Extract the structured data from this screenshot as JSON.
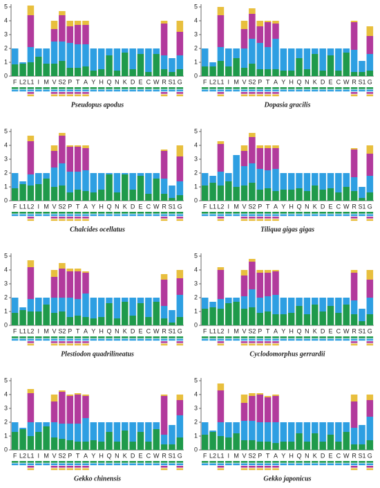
{
  "chart_data": [
    {
      "type": "bar",
      "stacked": true,
      "title": "Pseudopus apodus",
      "categories": [
        "F",
        "L2",
        "L1",
        "I",
        "M",
        "V",
        "S2",
        "P",
        "T",
        "A",
        "Y",
        "H",
        "Q",
        "N",
        "K",
        "D",
        "E",
        "C",
        "W",
        "R",
        "S1",
        "G"
      ],
      "ylim": [
        0,
        5
      ],
      "yticks": [
        0,
        1,
        2,
        3,
        4,
        5
      ],
      "series": [
        {
          "color": "#1f9a4b",
          "values": [
            0.85,
            0.9,
            1.0,
            1.4,
            0.9,
            0.9,
            1.1,
            0.6,
            0.6,
            0.7,
            0.4,
            0.5,
            1.5,
            0.4,
            1.7,
            0.5,
            1.6,
            0.3,
            1.6,
            0.5,
            0.3,
            0.5
          ]
        },
        {
          "color": "#2e9fe2",
          "values": [
            1.15,
            0.1,
            1.1,
            0.6,
            1.1,
            1.6,
            1.4,
            1.8,
            1.7,
            1.6,
            1.6,
            1.5,
            0.5,
            1.6,
            0.3,
            1.5,
            0.4,
            1.7,
            0.4,
            1.0,
            1.0,
            1.0
          ]
        },
        {
          "color": "#b23a9c",
          "values": [
            null,
            null,
            2.3,
            null,
            null,
            0.9,
            1.9,
            1.2,
            1.4,
            1.4,
            null,
            null,
            null,
            null,
            null,
            null,
            null,
            null,
            null,
            2.3,
            null,
            1.7
          ]
        },
        {
          "color": "#e8bf3e",
          "values": [
            null,
            null,
            0.7,
            null,
            null,
            0.6,
            0.3,
            0.4,
            0.3,
            0.3,
            null,
            null,
            null,
            null,
            null,
            null,
            null,
            null,
            null,
            0.2,
            null,
            0.8
          ]
        }
      ]
    },
    {
      "type": "bar",
      "stacked": true,
      "title": "Dopasia gracilis",
      "categories": [
        "F",
        "L2",
        "L1",
        "I",
        "M",
        "V",
        "S2",
        "P",
        "T",
        "A",
        "Y",
        "H",
        "Q",
        "N",
        "K",
        "D",
        "E",
        "C",
        "W",
        "R",
        "S1",
        "G"
      ],
      "ylim": [
        0,
        5
      ],
      "yticks": [
        0,
        1,
        2,
        3,
        4,
        5
      ],
      "series": [
        {
          "color": "#1f9a4b",
          "values": [
            0.7,
            0.7,
            1.1,
            0.7,
            1.3,
            0.6,
            0.9,
            0.5,
            0.5,
            0.5,
            0.4,
            0.4,
            1.3,
            0.5,
            1.6,
            0.4,
            1.5,
            0.4,
            1.7,
            0.3,
            0.3,
            0.4
          ]
        },
        {
          "color": "#2e9fe2",
          "values": [
            1.3,
            0.3,
            1.0,
            1.3,
            0.7,
            1.4,
            1.8,
            1.9,
            1.6,
            2.2,
            1.6,
            1.6,
            0.7,
            1.5,
            0.4,
            1.6,
            0.5,
            1.6,
            0.3,
            1.6,
            0.8,
            1.2
          ]
        },
        {
          "color": "#b23a9c",
          "values": [
            null,
            null,
            2.3,
            null,
            null,
            1.4,
            1.8,
            1.2,
            1.8,
            1.1,
            null,
            null,
            null,
            null,
            null,
            null,
            null,
            null,
            null,
            2.0,
            null,
            1.3
          ]
        },
        {
          "color": "#e8bf3e",
          "values": [
            null,
            null,
            0.6,
            null,
            null,
            0.6,
            0.4,
            0.4,
            0.1,
            0.2,
            null,
            null,
            null,
            null,
            null,
            null,
            null,
            null,
            null,
            0.1,
            null,
            0.7
          ]
        }
      ]
    },
    {
      "type": "bar",
      "stacked": true,
      "title": "Chalcides ocellatus",
      "categories": [
        "F",
        "L1",
        "L2",
        "I",
        "M",
        "V",
        "S2",
        "P",
        "T",
        "A",
        "Y",
        "H",
        "Q",
        "N",
        "K",
        "D",
        "E",
        "C",
        "W",
        "R",
        "S1",
        "G"
      ],
      "ylim": [
        0,
        5
      ],
      "yticks": [
        0,
        1,
        2,
        3,
        4,
        5
      ],
      "series": [
        {
          "color": "#1f9a4b",
          "values": [
            0.9,
            1.2,
            1.1,
            1.2,
            1.6,
            1.0,
            1.1,
            0.6,
            0.8,
            0.7,
            0.6,
            0.8,
            1.9,
            0.6,
            1.9,
            0.8,
            1.8,
            0.5,
            1.6,
            0.5,
            0.2,
            0.4
          ]
        },
        {
          "color": "#2e9fe2",
          "values": [
            1.1,
            0.2,
            0.8,
            0.8,
            0.4,
            1.4,
            1.6,
            1.5,
            1.3,
            1.5,
            1.4,
            1.2,
            0.1,
            1.4,
            0.1,
            1.2,
            0.2,
            1.5,
            0.4,
            1.1,
            0.9,
            1.0
          ]
        },
        {
          "color": "#b23a9c",
          "values": [
            null,
            null,
            2.4,
            null,
            null,
            1.2,
            2.0,
            1.8,
            1.8,
            1.6,
            null,
            null,
            null,
            null,
            null,
            null,
            null,
            null,
            null,
            2.0,
            null,
            1.8
          ]
        },
        {
          "color": "#e8bf3e",
          "values": [
            null,
            null,
            0.4,
            null,
            null,
            0.4,
            0.2,
            0.1,
            0.1,
            0.2,
            null,
            null,
            null,
            null,
            null,
            null,
            null,
            null,
            null,
            0.1,
            null,
            0.8
          ]
        }
      ]
    },
    {
      "type": "bar",
      "stacked": true,
      "title": "Tiliqua gigas gigas",
      "categories": [
        "F",
        "L1",
        "L2",
        "I",
        "M",
        "V",
        "S2",
        "P",
        "T",
        "A",
        "Y",
        "H",
        "Q",
        "N",
        "K",
        "D",
        "E",
        "C",
        "W",
        "R",
        "S1",
        "G"
      ],
      "ylim": [
        0,
        5
      ],
      "yticks": [
        0,
        1,
        2,
        3,
        4,
        5
      ],
      "series": [
        {
          "color": "#1f9a4b",
          "values": [
            1.1,
            1.3,
            1.1,
            1.4,
            1.0,
            1.1,
            1.3,
            0.8,
            0.9,
            0.7,
            0.8,
            0.8,
            0.9,
            0.7,
            1.1,
            0.8,
            0.9,
            0.6,
            1.0,
            0.7,
            0.2,
            0.6
          ]
        },
        {
          "color": "#2e9fe2",
          "values": [
            0.9,
            0.5,
            1.0,
            0.6,
            2.3,
            1.4,
            1.4,
            1.5,
            1.3,
            1.6,
            1.2,
            1.2,
            1.1,
            1.3,
            0.9,
            1.2,
            1.1,
            1.4,
            1.0,
            1.0,
            0.8,
            1.2
          ]
        },
        {
          "color": "#b23a9c",
          "values": [
            null,
            null,
            2.0,
            null,
            null,
            1.1,
            1.9,
            1.5,
            1.6,
            1.5,
            null,
            null,
            null,
            null,
            null,
            null,
            null,
            null,
            null,
            2.0,
            null,
            1.6
          ]
        },
        {
          "color": "#e8bf3e",
          "values": [
            null,
            null,
            0.2,
            null,
            null,
            0.4,
            0.3,
            0.2,
            0.2,
            0.2,
            null,
            null,
            null,
            null,
            null,
            null,
            null,
            null,
            null,
            0.1,
            null,
            0.6
          ]
        }
      ]
    },
    {
      "type": "bar",
      "stacked": true,
      "title": "Plestiodon quadrilineatus",
      "categories": [
        "F",
        "L1",
        "L2",
        "I",
        "M",
        "V",
        "S2",
        "P",
        "T",
        "A",
        "Y",
        "H",
        "Q",
        "N",
        "K",
        "D",
        "E",
        "C",
        "W",
        "R",
        "S1",
        "G"
      ],
      "ylim": [
        0,
        5
      ],
      "yticks": [
        0,
        1,
        2,
        3,
        4,
        5
      ],
      "series": [
        {
          "color": "#1f9a4b",
          "values": [
            0.9,
            1.1,
            1.0,
            1.0,
            1.5,
            0.9,
            1.0,
            0.6,
            0.7,
            0.6,
            0.5,
            0.6,
            1.6,
            0.5,
            1.7,
            0.7,
            1.6,
            0.6,
            1.7,
            0.5,
            0.2,
            0.6
          ]
        },
        {
          "color": "#2e9fe2",
          "values": [
            1.1,
            0.2,
            0.9,
            1.0,
            0.5,
            1.1,
            1.0,
            1.4,
            1.2,
            1.7,
            1.5,
            1.4,
            0.4,
            1.5,
            0.3,
            1.3,
            0.4,
            1.4,
            0.3,
            0.9,
            0.9,
            1.6
          ]
        },
        {
          "color": "#b23a9c",
          "values": [
            null,
            null,
            2.3,
            null,
            null,
            1.5,
            2.1,
            1.9,
            2.0,
            1.5,
            null,
            null,
            null,
            null,
            null,
            null,
            null,
            null,
            null,
            1.9,
            null,
            1.2
          ]
        },
        {
          "color": "#e8bf3e",
          "values": [
            null,
            null,
            0.5,
            null,
            null,
            0.5,
            0.4,
            0.2,
            0.2,
            0.1,
            null,
            null,
            null,
            null,
            null,
            null,
            null,
            null,
            null,
            0.4,
            null,
            0.6
          ]
        }
      ]
    },
    {
      "type": "bar",
      "stacked": true,
      "title": "Cyclodomorphus gerrardii",
      "categories": [
        "F",
        "L1",
        "L2",
        "I",
        "M",
        "V",
        "S2",
        "P",
        "T",
        "A",
        "Y",
        "H",
        "Q",
        "N",
        "K",
        "D",
        "E",
        "C",
        "W",
        "R",
        "S1",
        "G"
      ],
      "ylim": [
        0,
        5
      ],
      "yticks": [
        0,
        1,
        2,
        3,
        4,
        5
      ],
      "series": [
        {
          "color": "#1f9a4b",
          "values": [
            1.2,
            1.3,
            1.2,
            1.6,
            1.7,
            1.2,
            1.3,
            0.9,
            1.0,
            0.8,
            0.8,
            0.9,
            1.4,
            0.8,
            1.5,
            1.0,
            1.4,
            0.9,
            1.5,
            0.8,
            0.3,
            0.8
          ]
        },
        {
          "color": "#2e9fe2",
          "values": [
            0.8,
            0.4,
            0.7,
            0.4,
            0.3,
            0.9,
            1.3,
            1.1,
            1.1,
            1.4,
            1.2,
            1.1,
            0.6,
            1.2,
            0.5,
            1.0,
            0.6,
            1.1,
            0.5,
            1.0,
            0.9,
            1.2
          ]
        },
        {
          "color": "#b23a9c",
          "values": [
            null,
            null,
            2.1,
            null,
            null,
            1.5,
            2.0,
            1.8,
            1.7,
            1.7,
            null,
            null,
            null,
            null,
            null,
            null,
            null,
            null,
            null,
            2.0,
            null,
            1.3
          ]
        },
        {
          "color": "#e8bf3e",
          "values": [
            null,
            null,
            0.2,
            null,
            null,
            0.4,
            0.2,
            0.2,
            0.2,
            0.1,
            null,
            null,
            null,
            null,
            null,
            null,
            null,
            null,
            null,
            0.2,
            null,
            0.7
          ]
        }
      ]
    },
    {
      "type": "bar",
      "stacked": true,
      "title": "Gekko  chinensis",
      "categories": [
        "F",
        "L2",
        "L1",
        "I",
        "M",
        "V",
        "S2",
        "P",
        "T",
        "A",
        "Y",
        "H",
        "Q",
        "N",
        "K",
        "D",
        "E",
        "C",
        "W",
        "R",
        "S1",
        "G"
      ],
      "ylim": [
        0,
        5
      ],
      "yticks": [
        0,
        1,
        2,
        3,
        4,
        5
      ],
      "series": [
        {
          "color": "#1f9a4b",
          "values": [
            1.3,
            1.5,
            1.0,
            1.3,
            1.7,
            0.9,
            0.8,
            0.7,
            0.6,
            0.6,
            0.7,
            0.6,
            1.3,
            0.6,
            1.4,
            0.6,
            1.3,
            0.6,
            1.5,
            0.4,
            0.4,
            0.9
          ]
        },
        {
          "color": "#2e9fe2",
          "values": [
            0.7,
            0.1,
            1.0,
            0.7,
            0.3,
            1.1,
            1.1,
            1.2,
            1.3,
            1.7,
            1.3,
            1.4,
            0.7,
            1.4,
            0.6,
            1.4,
            0.7,
            1.4,
            0.5,
            0.7,
            1.4,
            1.6
          ]
        },
        {
          "color": "#b23a9c",
          "values": [
            null,
            null,
            2.1,
            null,
            null,
            1.5,
            2.3,
            2.0,
            2.1,
            1.6,
            null,
            null,
            null,
            null,
            null,
            null,
            null,
            null,
            null,
            2.8,
            null,
            1.1
          ]
        },
        {
          "color": "#e8bf3e",
          "values": [
            null,
            null,
            0.3,
            null,
            null,
            0.5,
            0.1,
            0.1,
            0.1,
            0.1,
            null,
            null,
            null,
            null,
            null,
            null,
            null,
            null,
            null,
            0.1,
            null,
            0.4
          ]
        }
      ]
    },
    {
      "type": "bar",
      "stacked": true,
      "title": "Gekko  japonicus",
      "categories": [
        "F",
        "L2",
        "L1",
        "I",
        "M",
        "V",
        "S2",
        "P",
        "T",
        "A",
        "Y",
        "H",
        "Q",
        "N",
        "K",
        "D",
        "E",
        "C",
        "W",
        "R",
        "S1",
        "G"
      ],
      "ylim": [
        0,
        5
      ],
      "yticks": [
        0,
        1,
        2,
        3,
        4,
        5
      ],
      "series": [
        {
          "color": "#1f9a4b",
          "values": [
            1.1,
            1.3,
            1.0,
            0.9,
            1.2,
            0.7,
            0.7,
            0.6,
            0.6,
            0.5,
            0.6,
            0.6,
            1.2,
            0.6,
            1.2,
            0.6,
            1.1,
            0.6,
            1.3,
            0.4,
            0.4,
            0.7
          ]
        },
        {
          "color": "#2e9fe2",
          "values": [
            0.9,
            0.1,
            1.0,
            1.1,
            0.8,
            1.4,
            1.4,
            1.4,
            1.4,
            1.5,
            1.4,
            1.4,
            0.8,
            1.4,
            0.8,
            1.4,
            0.9,
            1.4,
            0.7,
            1.2,
            1.4,
            1.7
          ]
        },
        {
          "color": "#b23a9c",
          "values": [
            null,
            null,
            2.3,
            null,
            null,
            1.3,
            1.8,
            2.0,
            1.8,
            1.9,
            null,
            null,
            null,
            null,
            null,
            null,
            null,
            null,
            null,
            1.9,
            null,
            1.2
          ]
        },
        {
          "color": "#e8bf3e",
          "values": [
            null,
            null,
            0.5,
            null,
            null,
            0.6,
            0.2,
            0.1,
            0.1,
            0.1,
            null,
            null,
            null,
            null,
            null,
            null,
            null,
            null,
            null,
            0.5,
            null,
            0.4
          ]
        }
      ]
    }
  ]
}
